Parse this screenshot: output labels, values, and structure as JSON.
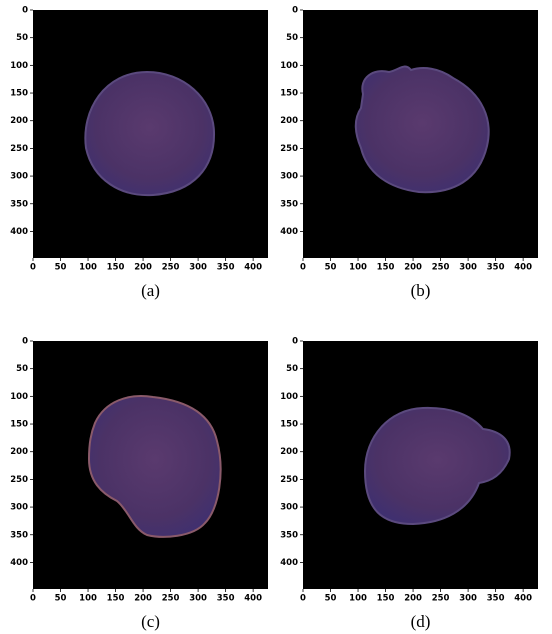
{
  "chart_data": [
    {
      "type": "image",
      "caption": "(a)",
      "xlim": [
        0,
        427
      ],
      "ylim": [
        448,
        0
      ],
      "xticks": [
        0,
        50,
        100,
        150,
        200,
        250,
        300,
        350,
        400
      ],
      "yticks": [
        0,
        50,
        100,
        150,
        200,
        250,
        300,
        350,
        400
      ]
    },
    {
      "type": "image",
      "caption": "(b)",
      "xlim": [
        0,
        427
      ],
      "ylim": [
        448,
        0
      ],
      "xticks": [
        0,
        50,
        100,
        150,
        200,
        250,
        300,
        350,
        400
      ],
      "yticks": [
        0,
        50,
        100,
        150,
        200,
        250,
        300,
        350,
        400
      ]
    },
    {
      "type": "image",
      "caption": "(c)",
      "xlim": [
        0,
        427
      ],
      "ylim": [
        448,
        0
      ],
      "xticks": [
        0,
        50,
        100,
        150,
        200,
        250,
        300,
        350,
        400
      ],
      "yticks": [
        0,
        50,
        100,
        150,
        200,
        250,
        300,
        350,
        400
      ]
    },
    {
      "type": "image",
      "caption": "(d)",
      "xlim": [
        0,
        427
      ],
      "ylim": [
        448,
        0
      ],
      "xticks": [
        0,
        50,
        100,
        150,
        200,
        250,
        300,
        350,
        400
      ],
      "yticks": [
        0,
        50,
        100,
        150,
        200,
        250,
        300,
        350,
        400
      ]
    }
  ]
}
